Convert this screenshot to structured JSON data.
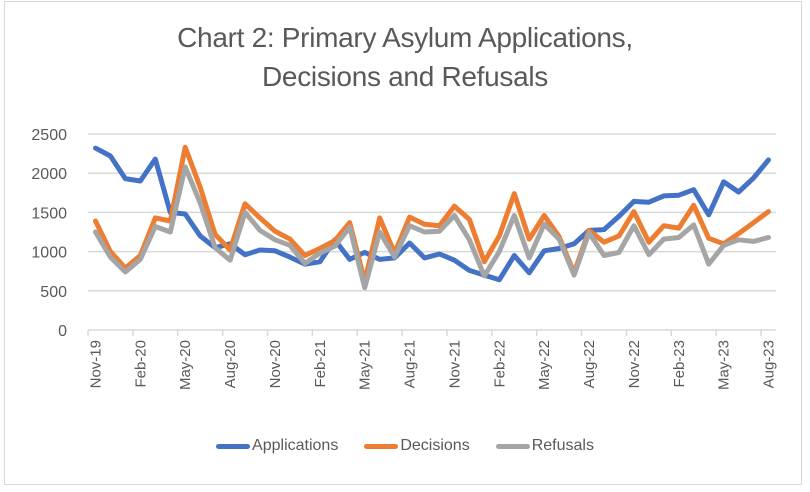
{
  "chart_data": {
    "type": "line",
    "title": "Chart 2: Primary Asylum Applications, Decisions and Refusals",
    "title_lines": [
      "Chart 2: Primary Asylum Applications,",
      "Decisions and Refusals"
    ],
    "xlabel": "",
    "ylabel": "",
    "ylim": [
      0,
      2500
    ],
    "yticks": [
      0,
      500,
      1000,
      1500,
      2000,
      2500
    ],
    "grid": true,
    "legend_position": "bottom",
    "x": [
      "Nov-19",
      "Dec-19",
      "Jan-20",
      "Feb-20",
      "Mar-20",
      "Apr-20",
      "May-20",
      "Jun-20",
      "Jul-20",
      "Aug-20",
      "Sep-20",
      "Oct-20",
      "Nov-20",
      "Dec-20",
      "Jan-21",
      "Feb-21",
      "Mar-21",
      "Apr-21",
      "May-21",
      "Jun-21",
      "Jul-21",
      "Aug-21",
      "Sep-21",
      "Oct-21",
      "Nov-21",
      "Dec-21",
      "Jan-22",
      "Feb-22",
      "Mar-22",
      "Apr-22",
      "May-22",
      "Jun-22",
      "Jul-22",
      "Aug-22",
      "Sep-22",
      "Oct-22",
      "Nov-22",
      "Dec-22",
      "Jan-23",
      "Feb-23",
      "Mar-23",
      "Apr-23",
      "May-23",
      "Jun-23",
      "Jul-23",
      "Aug-23"
    ],
    "xtick_labels": [
      "Nov-19",
      "Feb-20",
      "May-20",
      "Aug-20",
      "Nov-20",
      "Feb-21",
      "May-21",
      "Aug-21",
      "Nov-21",
      "Feb-22",
      "May-22",
      "Aug-22",
      "Nov-22",
      "Feb-23",
      "May-23",
      "Aug-23"
    ],
    "series": [
      {
        "name": "Applications",
        "color": "#4472c4",
        "values": [
          2320,
          2220,
          1930,
          1900,
          2180,
          1500,
          1480,
          1200,
          1050,
          1100,
          960,
          1020,
          1010,
          930,
          840,
          870,
          1150,
          900,
          990,
          900,
          920,
          1110,
          920,
          970,
          890,
          760,
          700,
          640,
          950,
          730,
          1010,
          1040,
          1100,
          1270,
          1280,
          1450,
          1640,
          1630,
          1710,
          1720,
          1790,
          1470,
          1890,
          1760,
          1940,
          2170
        ]
      },
      {
        "name": "Decisions",
        "color": "#ed7d31",
        "values": [
          1390,
          1000,
          790,
          950,
          1430,
          1390,
          2330,
          1820,
          1220,
          1020,
          1610,
          1430,
          1260,
          1160,
          950,
          1040,
          1140,
          1370,
          620,
          1430,
          980,
          1440,
          1350,
          1330,
          1580,
          1410,
          870,
          1200,
          1740,
          1160,
          1460,
          1190,
          730,
          1270,
          1120,
          1200,
          1510,
          1120,
          1330,
          1300,
          1590,
          1170,
          1100,
          1230,
          1370,
          1510
        ]
      },
      {
        "name": "Refusals",
        "color": "#a5a5a5",
        "values": [
          1250,
          930,
          740,
          900,
          1320,
          1250,
          2080,
          1620,
          1050,
          890,
          1500,
          1270,
          1150,
          1080,
          850,
          980,
          1070,
          1310,
          540,
          1250,
          930,
          1330,
          1250,
          1260,
          1460,
          1150,
          690,
          1000,
          1460,
          920,
          1350,
          1160,
          700,
          1240,
          950,
          990,
          1330,
          960,
          1160,
          1180,
          1340,
          840,
          1080,
          1150,
          1130,
          1180
        ]
      }
    ]
  }
}
